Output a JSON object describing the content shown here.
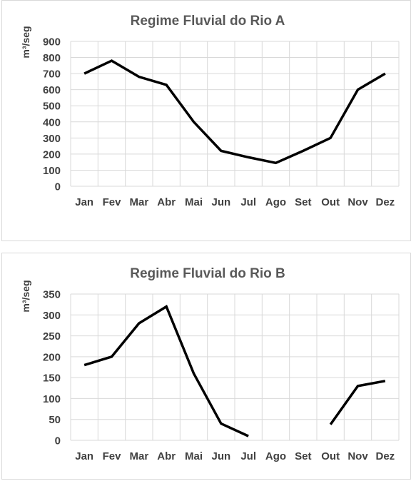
{
  "chart_data": [
    {
      "type": "line",
      "title": "Regime Fluvial do Rio A",
      "ylabel": "m³/seg",
      "xlabel": "",
      "categories": [
        "Jan",
        "Fev",
        "Mar",
        "Abr",
        "Mai",
        "Jun",
        "Jul",
        "Ago",
        "Set",
        "Out",
        "Nov",
        "Dez"
      ],
      "yticks": [
        0,
        100,
        200,
        300,
        400,
        500,
        600,
        700,
        800,
        900
      ],
      "ylim": [
        0,
        900
      ],
      "grid": true,
      "series": [
        {
          "values": [
            700,
            780,
            680,
            630,
            400,
            220,
            180,
            145,
            220,
            300,
            600,
            700
          ]
        }
      ]
    },
    {
      "type": "line",
      "title": "Regime Fluvial do Rio B",
      "ylabel": "m³/seg",
      "xlabel": "",
      "categories": [
        "Jan",
        "Fev",
        "Mar",
        "Abr",
        "Mai",
        "Jun",
        "Jul",
        "Ago",
        "Set",
        "Out",
        "Nov",
        "Dez"
      ],
      "yticks": [
        0,
        50,
        100,
        150,
        200,
        250,
        300,
        350
      ],
      "ylim": [
        0,
        350
      ],
      "grid": true,
      "series": [
        {
          "values": [
            180,
            200,
            280,
            320,
            160,
            40,
            10,
            null,
            null,
            38,
            130,
            142
          ]
        }
      ]
    }
  ]
}
